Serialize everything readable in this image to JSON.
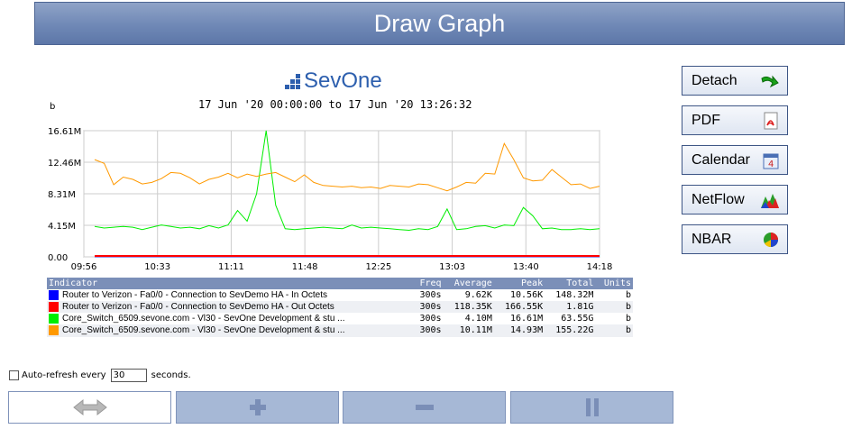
{
  "header": {
    "title": "Draw Graph"
  },
  "logo": {
    "text": "SevOne"
  },
  "graph": {
    "date_range": "17 Jun '20 00:00:00 to 17 Jun '20 13:26:32",
    "unit_label": "b"
  },
  "chart_data": {
    "type": "line",
    "x_ticks": [
      "09:56",
      "10:33",
      "11:11",
      "11:48",
      "12:25",
      "13:03",
      "13:40",
      "14:18"
    ],
    "y_ticks": [
      "0.00",
      "4.15M",
      "8.31M",
      "12.46M",
      "16.61M"
    ],
    "ylim": [
      0,
      16.61
    ],
    "grid": true,
    "series": [
      {
        "name": "Router to Verizon - Fa0/0 - Connection to SevDemo HA - In Octets",
        "color": "#0000ff",
        "values": [
          0.01,
          0.01,
          0.01,
          0.01,
          0.01,
          0.01,
          0.01,
          0.01,
          0.01,
          0.01,
          0.01,
          0.01,
          0.01,
          0.01,
          0.01,
          0.01,
          0.01,
          0.01,
          0.01,
          0.01,
          0.01,
          0.01,
          0.01,
          0.01,
          0.01,
          0.01,
          0.01,
          0.01,
          0.01,
          0.01,
          0.01,
          0.01,
          0.01,
          0.01,
          0.01,
          0.01,
          0.01,
          0.01,
          0.01,
          0.01,
          0.01,
          0.01,
          0.01,
          0.01,
          0.01,
          0.01,
          0.01,
          0.01,
          0.01,
          0.01,
          0.01,
          0.01,
          0.01,
          0.01
        ]
      },
      {
        "name": "Router to Verizon - Fa0/0 - Connection to SevDemo HA - Out Octets",
        "color": "#ff0000",
        "values": [
          0.12,
          0.12,
          0.12,
          0.12,
          0.12,
          0.12,
          0.12,
          0.12,
          0.12,
          0.12,
          0.12,
          0.12,
          0.12,
          0.12,
          0.12,
          0.12,
          0.12,
          0.12,
          0.12,
          0.12,
          0.12,
          0.12,
          0.12,
          0.12,
          0.12,
          0.12,
          0.12,
          0.12,
          0.12,
          0.12,
          0.12,
          0.12,
          0.12,
          0.12,
          0.12,
          0.12,
          0.12,
          0.12,
          0.12,
          0.12,
          0.12,
          0.12,
          0.12,
          0.12,
          0.12,
          0.12,
          0.12,
          0.12,
          0.12,
          0.12,
          0.12,
          0.12,
          0.12,
          0.12
        ]
      },
      {
        "name": "Core_Switch_6509.sevone.com - Vl30 - SevOne Development & stu ...",
        "color": "#00ee00",
        "values": [
          4.0,
          3.8,
          3.9,
          4.0,
          3.9,
          3.6,
          3.9,
          4.2,
          4.0,
          3.8,
          3.9,
          3.7,
          4.1,
          3.8,
          4.2,
          6.1,
          4.7,
          8.3,
          16.61,
          6.8,
          3.7,
          3.6,
          3.7,
          3.8,
          3.9,
          3.8,
          3.7,
          4.2,
          3.8,
          3.9,
          3.8,
          3.7,
          3.6,
          3.5,
          3.7,
          3.6,
          4.0,
          6.3,
          3.6,
          3.7,
          4.0,
          4.1,
          3.8,
          4.2,
          4.1,
          6.5,
          5.4,
          3.7,
          3.8,
          3.6,
          3.6,
          3.7,
          3.6,
          3.7
        ]
      },
      {
        "name": "Core_Switch_6509.sevone.com - Vl30 - SevOne Development & stu ...",
        "color": "#ff9900",
        "values": [
          12.8,
          12.3,
          9.5,
          10.5,
          10.2,
          9.6,
          9.8,
          10.3,
          11.1,
          11.0,
          10.4,
          9.6,
          10.2,
          10.5,
          11.0,
          10.4,
          10.9,
          10.6,
          10.9,
          11.1,
          10.5,
          9.9,
          10.8,
          9.8,
          9.4,
          9.3,
          9.2,
          9.3,
          9.1,
          9.2,
          9.0,
          9.4,
          9.3,
          9.2,
          9.6,
          9.5,
          9.1,
          8.7,
          9.2,
          9.8,
          9.7,
          11.0,
          10.9,
          14.93,
          12.8,
          10.4,
          10.0,
          10.1,
          11.5,
          10.5,
          9.5,
          9.6,
          9.0,
          9.3
        ]
      }
    ]
  },
  "legend": {
    "headers": [
      "Indicator",
      "Freq",
      "Average",
      "Peak",
      "Total",
      "Units"
    ],
    "rows": [
      {
        "color": "#0000ff",
        "name": "Router to Verizon - Fa0/0 - Connection to SevDemo HA - In Octets",
        "freq": "300s",
        "average": "9.62K",
        "peak": "10.56K",
        "total": "148.32M",
        "units": "b"
      },
      {
        "color": "#ff0000",
        "name": "Router to Verizon - Fa0/0 - Connection to SevDemo HA - Out Octets",
        "freq": "300s",
        "average": "118.35K",
        "peak": "166.55K",
        "total": "1.81G",
        "units": "b"
      },
      {
        "color": "#00ee00",
        "name": "Core_Switch_6509.sevone.com - Vl30 - SevOne Development & stu ...",
        "freq": "300s",
        "average": "4.10M",
        "peak": "16.61M",
        "total": "63.55G",
        "units": "b"
      },
      {
        "color": "#ff9900",
        "name": "Core_Switch_6509.sevone.com - Vl30 - SevOne Development & stu ...",
        "freq": "300s",
        "average": "10.11M",
        "peak": "14.93M",
        "total": "155.22G",
        "units": "b"
      }
    ]
  },
  "side_buttons": [
    {
      "label": "Detach",
      "icon": "arrow-icon"
    },
    {
      "label": "PDF",
      "icon": "pdf-icon"
    },
    {
      "label": "Calendar",
      "icon": "calendar-icon"
    },
    {
      "label": "NetFlow",
      "icon": "netflow-icon"
    },
    {
      "label": "NBAR",
      "icon": "pie-chart-icon"
    }
  ],
  "auto_refresh": {
    "prefix": "Auto-refresh every",
    "value": "30",
    "suffix": "seconds."
  },
  "nav_buttons": [
    {
      "icon": "pan-arrows-icon"
    },
    {
      "icon": "zoom-in-icon"
    },
    {
      "icon": "zoom-out-icon"
    },
    {
      "icon": "pause-icon"
    }
  ]
}
